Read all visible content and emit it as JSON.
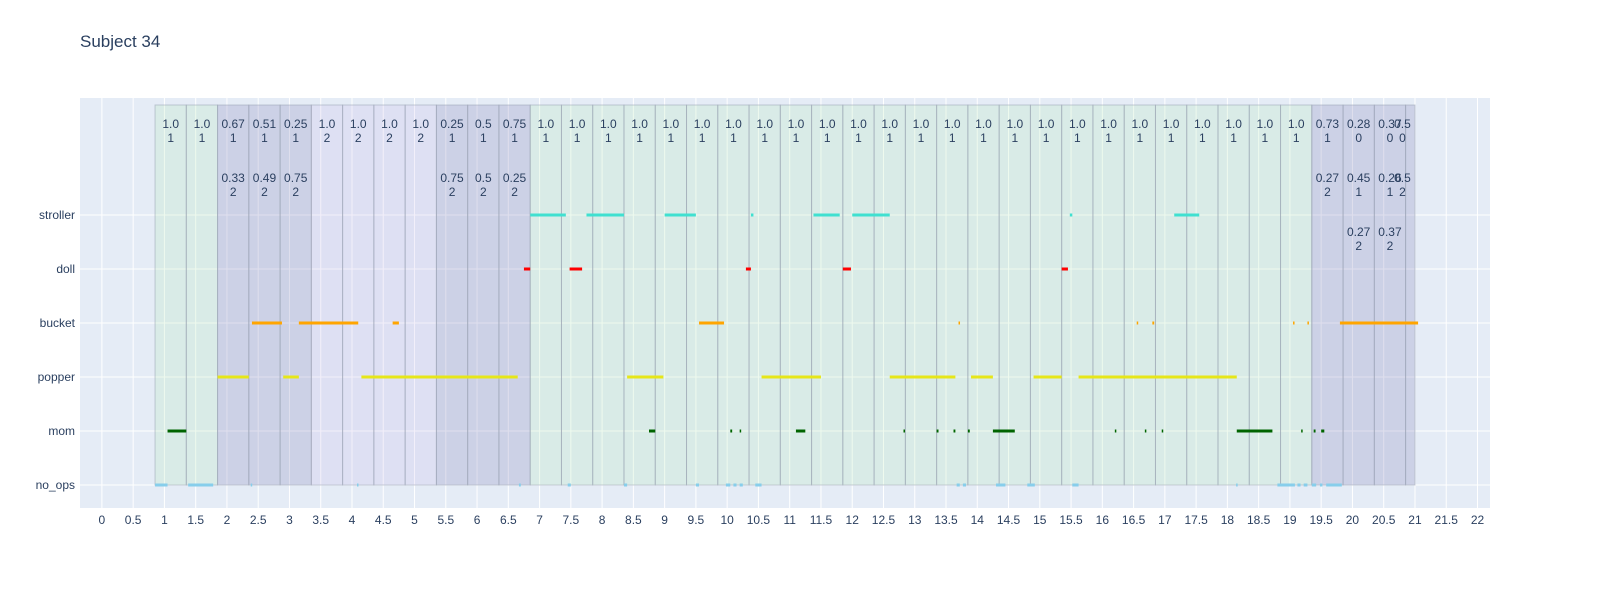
{
  "chart_data": {
    "type": "timeline",
    "title": "Subject 34",
    "xlim": [
      -0.35,
      22.2
    ],
    "xticks": [
      "0",
      "0.5",
      "1",
      "1.5",
      "2",
      "2.5",
      "3",
      "3.5",
      "4",
      "4.5",
      "5",
      "5.5",
      "6",
      "6.5",
      "7",
      "7.5",
      "8",
      "8.5",
      "9",
      "9.5",
      "10",
      "10.5",
      "11",
      "11.5",
      "12",
      "12.5",
      "13",
      "13.5",
      "14",
      "14.5",
      "15",
      "15.5",
      "16",
      "16.5",
      "17",
      "17.5",
      "18",
      "18.5",
      "19",
      "19.5",
      "20",
      "20.5",
      "21",
      "21.5",
      "22"
    ],
    "categories": [
      "no_ops",
      "mom",
      "popper",
      "bucket",
      "doll",
      "stroller"
    ],
    "grid": true,
    "colors": {
      "no_ops": "#87ceeb",
      "mom": "#006400",
      "popper": "#e6e619",
      "bucket": "#ffa500",
      "doll": "#ff0000",
      "stroller": "#40e0d0",
      "label_1": "#b3e6b3",
      "label_2": "#c8b4e6",
      "mixed": "#8c8cbe"
    },
    "segments": [
      {
        "start": 0.85,
        "end": 1.35,
        "kind": "label_1"
      },
      {
        "start": 1.35,
        "end": 1.85,
        "kind": "label_1"
      },
      {
        "start": 1.85,
        "end": 2.35,
        "kind": "mixed"
      },
      {
        "start": 2.35,
        "end": 2.85,
        "kind": "mixed"
      },
      {
        "start": 2.85,
        "end": 3.35,
        "kind": "mixed"
      },
      {
        "start": 3.35,
        "end": 3.85,
        "kind": "label_2"
      },
      {
        "start": 3.85,
        "end": 4.35,
        "kind": "label_2"
      },
      {
        "start": 4.35,
        "end": 4.85,
        "kind": "label_2"
      },
      {
        "start": 4.85,
        "end": 5.35,
        "kind": "label_2"
      },
      {
        "start": 5.35,
        "end": 5.85,
        "kind": "mixed"
      },
      {
        "start": 5.85,
        "end": 6.35,
        "kind": "mixed"
      },
      {
        "start": 6.35,
        "end": 6.85,
        "kind": "mixed"
      },
      {
        "start": 6.85,
        "end": 7.35,
        "kind": "label_1"
      },
      {
        "start": 7.35,
        "end": 7.85,
        "kind": "label_1"
      },
      {
        "start": 7.85,
        "end": 8.35,
        "kind": "label_1"
      },
      {
        "start": 8.35,
        "end": 8.85,
        "kind": "label_1"
      },
      {
        "start": 8.85,
        "end": 9.35,
        "kind": "label_1"
      },
      {
        "start": 9.35,
        "end": 9.85,
        "kind": "label_1"
      },
      {
        "start": 9.85,
        "end": 10.35,
        "kind": "label_1"
      },
      {
        "start": 10.35,
        "end": 10.85,
        "kind": "label_1"
      },
      {
        "start": 10.85,
        "end": 11.35,
        "kind": "label_1"
      },
      {
        "start": 11.35,
        "end": 11.85,
        "kind": "label_1"
      },
      {
        "start": 11.85,
        "end": 12.35,
        "kind": "label_1"
      },
      {
        "start": 12.35,
        "end": 12.85,
        "kind": "label_1"
      },
      {
        "start": 12.85,
        "end": 13.35,
        "kind": "label_1"
      },
      {
        "start": 13.35,
        "end": 13.85,
        "kind": "label_1"
      },
      {
        "start": 13.85,
        "end": 14.35,
        "kind": "label_1"
      },
      {
        "start": 14.35,
        "end": 14.85,
        "kind": "label_1"
      },
      {
        "start": 14.85,
        "end": 15.35,
        "kind": "label_1"
      },
      {
        "start": 15.35,
        "end": 15.85,
        "kind": "label_1"
      },
      {
        "start": 15.85,
        "end": 16.35,
        "kind": "label_1"
      },
      {
        "start": 16.35,
        "end": 16.85,
        "kind": "label_1"
      },
      {
        "start": 16.85,
        "end": 17.35,
        "kind": "label_1"
      },
      {
        "start": 17.35,
        "end": 17.85,
        "kind": "label_1"
      },
      {
        "start": 17.85,
        "end": 18.35,
        "kind": "label_1"
      },
      {
        "start": 18.35,
        "end": 18.85,
        "kind": "label_1"
      },
      {
        "start": 18.85,
        "end": 19.35,
        "kind": "label_1"
      },
      {
        "start": 19.35,
        "end": 19.85,
        "kind": "mixed"
      },
      {
        "start": 19.85,
        "end": 20.35,
        "kind": "mixed"
      },
      {
        "start": 20.35,
        "end": 20.85,
        "kind": "mixed"
      },
      {
        "start": 20.85,
        "end": 21.0,
        "kind": "mixed"
      }
    ],
    "annotations": [
      {
        "x": 1.1,
        "row": 0,
        "value": "1.0",
        "label": "1"
      },
      {
        "x": 1.6,
        "row": 0,
        "value": "1.0",
        "label": "1"
      },
      {
        "x": 2.1,
        "row": 0,
        "value": "0.67",
        "label": "1"
      },
      {
        "x": 2.1,
        "row": 1,
        "value": "0.33",
        "label": "2"
      },
      {
        "x": 2.6,
        "row": 0,
        "value": "0.51",
        "label": "1"
      },
      {
        "x": 2.6,
        "row": 1,
        "value": "0.49",
        "label": "2"
      },
      {
        "x": 3.1,
        "row": 0,
        "value": "0.25",
        "label": "1"
      },
      {
        "x": 3.1,
        "row": 1,
        "value": "0.75",
        "label": "2"
      },
      {
        "x": 3.6,
        "row": 0,
        "value": "1.0",
        "label": "2"
      },
      {
        "x": 4.1,
        "row": 0,
        "value": "1.0",
        "label": "2"
      },
      {
        "x": 4.6,
        "row": 0,
        "value": "1.0",
        "label": "2"
      },
      {
        "x": 5.1,
        "row": 0,
        "value": "1.0",
        "label": "2"
      },
      {
        "x": 5.6,
        "row": 0,
        "value": "0.25",
        "label": "1"
      },
      {
        "x": 5.6,
        "row": 1,
        "value": "0.75",
        "label": "2"
      },
      {
        "x": 6.1,
        "row": 0,
        "value": "0.5",
        "label": "1"
      },
      {
        "x": 6.1,
        "row": 1,
        "value": "0.5",
        "label": "2"
      },
      {
        "x": 6.6,
        "row": 0,
        "value": "0.75",
        "label": "1"
      },
      {
        "x": 6.6,
        "row": 1,
        "value": "0.25",
        "label": "2"
      },
      {
        "x": 7.1,
        "row": 0,
        "value": "1.0",
        "label": "1"
      },
      {
        "x": 7.6,
        "row": 0,
        "value": "1.0",
        "label": "1"
      },
      {
        "x": 8.1,
        "row": 0,
        "value": "1.0",
        "label": "1"
      },
      {
        "x": 8.6,
        "row": 0,
        "value": "1.0",
        "label": "1"
      },
      {
        "x": 9.1,
        "row": 0,
        "value": "1.0",
        "label": "1"
      },
      {
        "x": 9.6,
        "row": 0,
        "value": "1.0",
        "label": "1"
      },
      {
        "x": 10.1,
        "row": 0,
        "value": "1.0",
        "label": "1"
      },
      {
        "x": 10.6,
        "row": 0,
        "value": "1.0",
        "label": "1"
      },
      {
        "x": 11.1,
        "row": 0,
        "value": "1.0",
        "label": "1"
      },
      {
        "x": 11.6,
        "row": 0,
        "value": "1.0",
        "label": "1"
      },
      {
        "x": 12.1,
        "row": 0,
        "value": "1.0",
        "label": "1"
      },
      {
        "x": 12.6,
        "row": 0,
        "value": "1.0",
        "label": "1"
      },
      {
        "x": 13.1,
        "row": 0,
        "value": "1.0",
        "label": "1"
      },
      {
        "x": 13.6,
        "row": 0,
        "value": "1.0",
        "label": "1"
      },
      {
        "x": 14.1,
        "row": 0,
        "value": "1.0",
        "label": "1"
      },
      {
        "x": 14.6,
        "row": 0,
        "value": "1.0",
        "label": "1"
      },
      {
        "x": 15.1,
        "row": 0,
        "value": "1.0",
        "label": "1"
      },
      {
        "x": 15.6,
        "row": 0,
        "value": "1.0",
        "label": "1"
      },
      {
        "x": 16.1,
        "row": 0,
        "value": "1.0",
        "label": "1"
      },
      {
        "x": 16.6,
        "row": 0,
        "value": "1.0",
        "label": "1"
      },
      {
        "x": 17.1,
        "row": 0,
        "value": "1.0",
        "label": "1"
      },
      {
        "x": 17.6,
        "row": 0,
        "value": "1.0",
        "label": "1"
      },
      {
        "x": 18.1,
        "row": 0,
        "value": "1.0",
        "label": "1"
      },
      {
        "x": 18.6,
        "row": 0,
        "value": "1.0",
        "label": "1"
      },
      {
        "x": 19.1,
        "row": 0,
        "value": "1.0",
        "label": "1"
      },
      {
        "x": 19.6,
        "row": 0,
        "value": "0.73",
        "label": "1"
      },
      {
        "x": 19.6,
        "row": 1,
        "value": "0.27",
        "label": "2"
      },
      {
        "x": 20.1,
        "row": 0,
        "value": "0.28",
        "label": "0"
      },
      {
        "x": 20.1,
        "row": 1,
        "value": "0.45",
        "label": "1"
      },
      {
        "x": 20.1,
        "row": 2,
        "value": "0.27",
        "label": "2"
      },
      {
        "x": 20.6,
        "row": 0,
        "value": "0.37",
        "label": "0"
      },
      {
        "x": 20.6,
        "row": 1,
        "value": "0.26",
        "label": "1"
      },
      {
        "x": 20.6,
        "row": 2,
        "value": "0.37",
        "label": "2"
      },
      {
        "x": 20.8,
        "row": 0,
        "value": "0.5",
        "label": "0"
      },
      {
        "x": 20.8,
        "row": 1,
        "value": "0.5",
        "label": "2"
      }
    ],
    "events": {
      "no_ops": [
        [
          0.85,
          1.05
        ],
        [
          1.38,
          1.78
        ],
        [
          2.38,
          2.4
        ],
        [
          4.08,
          4.1
        ],
        [
          6.67,
          6.7
        ],
        [
          7.45,
          7.5
        ],
        [
          8.35,
          8.4
        ],
        [
          9.5,
          9.55
        ],
        [
          9.98,
          10.05
        ],
        [
          10.1,
          10.15
        ],
        [
          10.2,
          10.25
        ],
        [
          10.45,
          10.55
        ],
        [
          13.67,
          13.72
        ],
        [
          13.77,
          13.82
        ],
        [
          14.3,
          14.45
        ],
        [
          14.8,
          14.92
        ],
        [
          15.52,
          15.62
        ],
        [
          18.14,
          18.16
        ],
        [
          18.8,
          19.08
        ],
        [
          19.12,
          19.17
        ],
        [
          19.22,
          19.28
        ],
        [
          19.35,
          19.42
        ],
        [
          19.48,
          19.52
        ],
        [
          19.58,
          19.83
        ]
      ],
      "mom": [
        [
          1.05,
          1.35
        ],
        [
          8.75,
          8.85
        ],
        [
          10.05,
          10.08
        ],
        [
          10.2,
          10.22
        ],
        [
          11.1,
          11.25
        ],
        [
          12.82,
          12.84
        ],
        [
          13.35,
          13.38
        ],
        [
          13.62,
          13.65
        ],
        [
          13.85,
          13.88
        ],
        [
          14.25,
          14.6
        ],
        [
          16.2,
          16.22
        ],
        [
          16.68,
          16.7
        ],
        [
          16.95,
          16.97
        ],
        [
          18.15,
          18.72
        ],
        [
          19.18,
          19.2
        ],
        [
          19.38,
          19.41
        ],
        [
          19.5,
          19.55
        ]
      ],
      "popper": [
        [
          1.85,
          2.35
        ],
        [
          2.9,
          3.15
        ],
        [
          4.15,
          6.65
        ],
        [
          8.4,
          8.98
        ],
        [
          10.55,
          11.5
        ],
        [
          12.6,
          13.65
        ],
        [
          13.9,
          14.25
        ],
        [
          14.9,
          15.35
        ],
        [
          15.62,
          18.15
        ]
      ],
      "bucket": [
        [
          2.4,
          2.88
        ],
        [
          3.15,
          4.1
        ],
        [
          4.65,
          4.75
        ],
        [
          9.55,
          9.95
        ],
        [
          13.7,
          13.72
        ],
        [
          16.55,
          16.57
        ],
        [
          16.8,
          16.83
        ],
        [
          19.05,
          19.07
        ],
        [
          19.28,
          19.3
        ],
        [
          19.8,
          21.05
        ]
      ],
      "doll": [
        [
          6.75,
          6.85
        ],
        [
          7.48,
          7.68
        ],
        [
          10.3,
          10.38
        ],
        [
          11.85,
          11.98
        ],
        [
          15.35,
          15.45
        ]
      ],
      "stroller": [
        [
          6.85,
          7.42
        ],
        [
          7.75,
          8.35
        ],
        [
          9.0,
          9.5
        ],
        [
          10.38,
          10.42
        ],
        [
          11.38,
          11.8
        ],
        [
          12.0,
          12.6
        ],
        [
          15.48,
          15.52
        ],
        [
          17.15,
          17.55
        ]
      ]
    }
  }
}
